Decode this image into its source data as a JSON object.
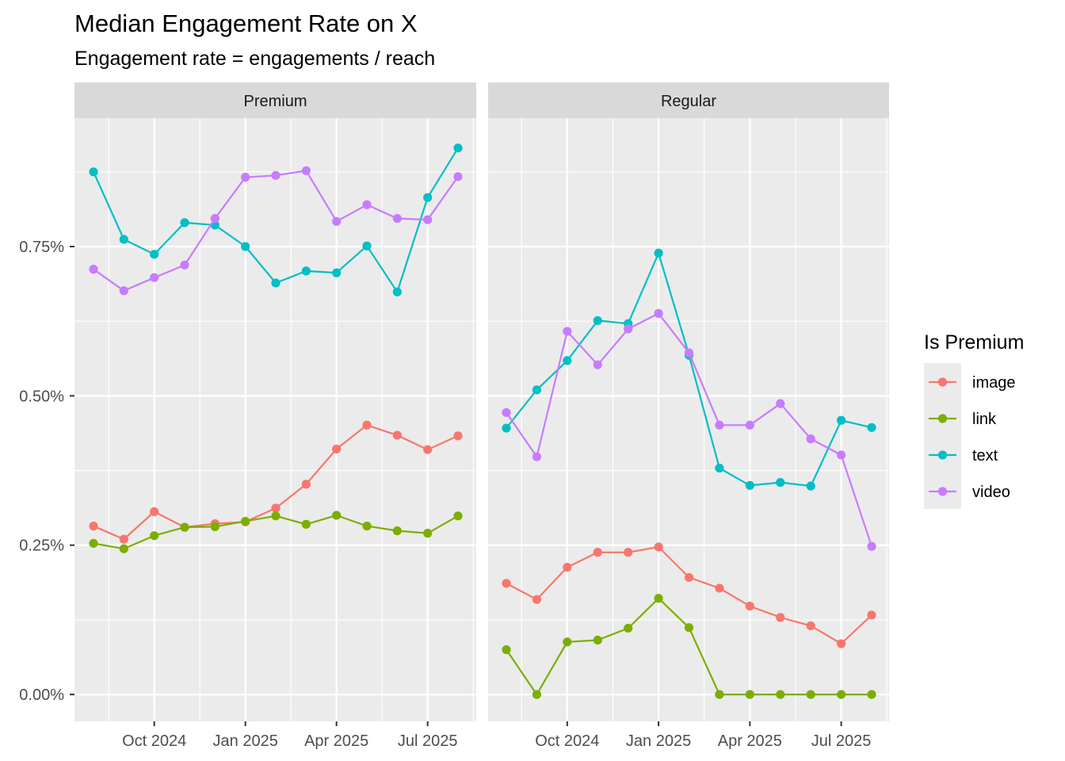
{
  "chart_data": {
    "type": "line",
    "title": "Median Engagement Rate on X",
    "subtitle": "Engagement rate = engagements / reach",
    "xlabel": "",
    "ylabel": "",
    "x": [
      "2024-08",
      "2024-09",
      "2024-10",
      "2024-11",
      "2024-12",
      "2025-01",
      "2025-02",
      "2025-03",
      "2025-04",
      "2025-05",
      "2025-06",
      "2025-07",
      "2025-08"
    ],
    "x_ticks": [
      {
        "value": "2024-10",
        "label": "Oct 2024"
      },
      {
        "value": "2025-01",
        "label": "Jan 2025"
      },
      {
        "value": "2025-04",
        "label": "Apr 2025"
      },
      {
        "value": "2025-07",
        "label": "Jul 2025"
      }
    ],
    "y_ticks": [
      {
        "value": 0.0,
        "label": "0.00%"
      },
      {
        "value": 0.25,
        "label": "0.25%"
      },
      {
        "value": 0.5,
        "label": "0.50%"
      },
      {
        "value": 0.75,
        "label": "0.75%"
      }
    ],
    "ylim": [
      -0.045,
      0.965
    ],
    "y_unit": "percent",
    "grid": true,
    "legend": {
      "title": "Is Premium",
      "position": "right"
    },
    "colors": {
      "image": "#F8766D",
      "link": "#7CAE00",
      "text": "#00BFC4",
      "video": "#C77CFF"
    },
    "facets": [
      {
        "label": "Premium",
        "series": [
          {
            "name": "image",
            "values": [
              0.282,
              0.26,
              0.306,
              0.28,
              0.286,
              0.289,
              0.312,
              0.352,
              0.411,
              0.451,
              0.434,
              0.41,
              0.433
            ]
          },
          {
            "name": "link",
            "values": [
              0.253,
              0.244,
              0.266,
              0.28,
              0.281,
              0.29,
              0.299,
              0.285,
              0.3,
              0.282,
              0.274,
              0.27,
              0.299
            ]
          },
          {
            "name": "text",
            "values": [
              0.875,
              0.762,
              0.737,
              0.79,
              0.786,
              0.75,
              0.689,
              0.709,
              0.706,
              0.751,
              0.674,
              0.832,
              0.915
            ]
          },
          {
            "name": "video",
            "values": [
              0.712,
              0.676,
              0.698,
              0.719,
              0.797,
              0.866,
              0.869,
              0.877,
              0.792,
              0.82,
              0.797,
              0.795,
              0.867
            ]
          }
        ]
      },
      {
        "label": "Regular",
        "series": [
          {
            "name": "image",
            "values": [
              0.186,
              0.159,
              0.213,
              0.238,
              0.238,
              0.247,
              0.196,
              0.178,
              0.148,
              0.129,
              0.115,
              0.085,
              0.133
            ]
          },
          {
            "name": "link",
            "values": [
              0.075,
              0.0,
              0.088,
              0.091,
              0.111,
              0.161,
              0.112,
              0.0,
              0.0,
              0.0,
              0.0,
              0.0,
              0.0
            ]
          },
          {
            "name": "text",
            "values": [
              0.446,
              0.51,
              0.559,
              0.626,
              0.621,
              0.739,
              0.568,
              0.379,
              0.35,
              0.355,
              0.349,
              0.459,
              0.447
            ]
          },
          {
            "name": "video",
            "values": [
              0.472,
              0.398,
              0.608,
              0.552,
              0.612,
              0.638,
              0.572,
              0.451,
              0.451,
              0.487,
              0.428,
              0.401,
              0.248
            ]
          }
        ]
      }
    ]
  }
}
